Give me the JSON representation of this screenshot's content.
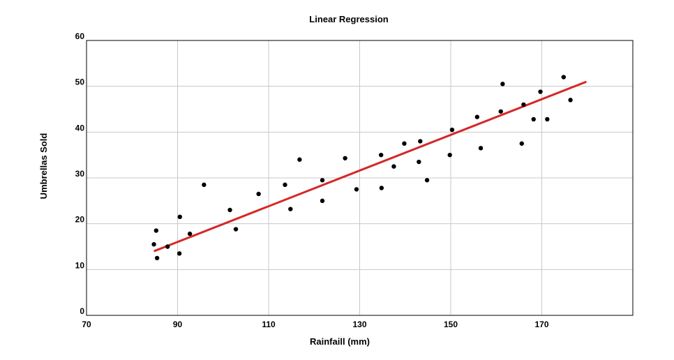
{
  "chart_data": {
    "type": "scatter",
    "title": "Linear Regression",
    "xlabel": "Rainfaill (mm)",
    "ylabel": "Umbrellas Sold",
    "xlim": [
      70,
      190
    ],
    "ylim": [
      0,
      60
    ],
    "x_ticks": [
      {
        "label": "70",
        "value": 70
      },
      {
        "label": "90",
        "value": 90
      },
      {
        "label": "110",
        "value": 110
      },
      {
        "label": "130",
        "value": 130
      },
      {
        "label": "150",
        "value": 150
      },
      {
        "label": "170",
        "value": 170
      }
    ],
    "y_ticks": [
      {
        "label": "0",
        "value": 0
      },
      {
        "label": "10",
        "value": 10
      },
      {
        "label": "20",
        "value": 20
      },
      {
        "label": "30",
        "value": 30
      },
      {
        "label": "40",
        "value": 40
      },
      {
        "label": "50",
        "value": 50
      },
      {
        "label": "60",
        "value": 60
      }
    ],
    "grid": true,
    "colors": {
      "points": "#000000",
      "trend": "#d62728",
      "grid": "#c8c8c8",
      "frame": "#000000"
    },
    "points": [
      [
        84.8,
        15.5
      ],
      [
        85.3,
        18.5
      ],
      [
        85.5,
        12.5
      ],
      [
        87.8,
        15.0
      ],
      [
        90.5,
        21.5
      ],
      [
        90.4,
        13.5
      ],
      [
        92.7,
        17.8
      ],
      [
        95.8,
        28.5
      ],
      [
        101.5,
        23.0
      ],
      [
        102.8,
        18.8
      ],
      [
        107.8,
        26.5
      ],
      [
        113.6,
        28.5
      ],
      [
        114.8,
        23.2
      ],
      [
        116.8,
        34.0
      ],
      [
        121.8,
        29.5
      ],
      [
        121.8,
        25.0
      ],
      [
        126.8,
        34.3
      ],
      [
        129.3,
        27.5
      ],
      [
        134.7,
        35.0
      ],
      [
        134.8,
        27.8
      ],
      [
        137.5,
        32.5
      ],
      [
        139.8,
        37.5
      ],
      [
        143.3,
        38.0
      ],
      [
        143.0,
        33.5
      ],
      [
        144.8,
        29.5
      ],
      [
        149.8,
        35.0
      ],
      [
        150.3,
        40.5
      ],
      [
        155.8,
        43.3
      ],
      [
        156.6,
        36.5
      ],
      [
        161.0,
        44.5
      ],
      [
        161.4,
        50.5
      ],
      [
        165.6,
        37.5
      ],
      [
        166.0,
        46.0
      ],
      [
        168.2,
        42.8
      ],
      [
        169.7,
        48.8
      ],
      [
        171.2,
        42.8
      ],
      [
        174.8,
        52.0
      ],
      [
        176.3,
        47.0
      ]
    ],
    "trendline": {
      "x": [
        84.8,
        179.8
      ],
      "y": [
        14.0,
        51.0
      ]
    }
  }
}
